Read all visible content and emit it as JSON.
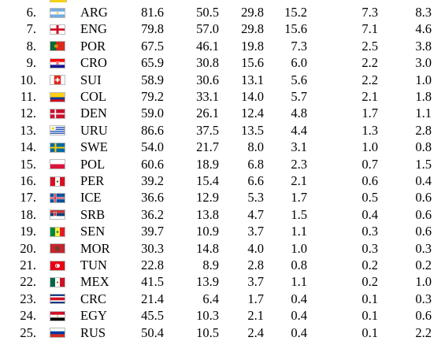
{
  "rows": [
    {
      "rank": "6.",
      "team": "ARG",
      "flag": "argentina-flag-icon",
      "values": [
        "81.6",
        "50.5",
        "29.8",
        "15.2",
        "7.3",
        "8.3"
      ]
    },
    {
      "rank": "7.",
      "team": "ENG",
      "flag": "england-flag-icon",
      "values": [
        "79.8",
        "57.0",
        "29.8",
        "15.6",
        "7.1",
        "4.6"
      ]
    },
    {
      "rank": "8.",
      "team": "POR",
      "flag": "portugal-flag-icon",
      "values": [
        "67.5",
        "46.1",
        "19.8",
        "7.3",
        "2.5",
        "3.8"
      ]
    },
    {
      "rank": "9.",
      "team": "CRO",
      "flag": "croatia-flag-icon",
      "values": [
        "65.9",
        "30.8",
        "15.6",
        "6.0",
        "2.2",
        "3.0"
      ]
    },
    {
      "rank": "10.",
      "team": "SUI",
      "flag": "switzerland-flag-icon",
      "values": [
        "58.9",
        "30.6",
        "13.1",
        "5.6",
        "2.2",
        "1.0"
      ]
    },
    {
      "rank": "11.",
      "team": "COL",
      "flag": "colombia-flag-icon",
      "values": [
        "79.2",
        "33.1",
        "14.0",
        "5.7",
        "2.1",
        "1.8"
      ]
    },
    {
      "rank": "12.",
      "team": "DEN",
      "flag": "denmark-flag-icon",
      "values": [
        "59.0",
        "26.1",
        "12.4",
        "4.8",
        "1.7",
        "1.1"
      ]
    },
    {
      "rank": "13.",
      "team": "URU",
      "flag": "uruguay-flag-icon",
      "values": [
        "86.6",
        "37.5",
        "13.5",
        "4.4",
        "1.3",
        "2.8"
      ]
    },
    {
      "rank": "14.",
      "team": "SWE",
      "flag": "sweden-flag-icon",
      "values": [
        "54.0",
        "21.7",
        "8.0",
        "3.1",
        "1.0",
        "0.8"
      ]
    },
    {
      "rank": "15.",
      "team": "POL",
      "flag": "poland-flag-icon",
      "values": [
        "60.6",
        "18.9",
        "6.8",
        "2.3",
        "0.7",
        "1.5"
      ]
    },
    {
      "rank": "16.",
      "team": "PER",
      "flag": "peru-flag-icon",
      "values": [
        "39.2",
        "15.4",
        "6.6",
        "2.1",
        "0.6",
        "0.4"
      ]
    },
    {
      "rank": "17.",
      "team": "ICE",
      "flag": "iceland-flag-icon",
      "values": [
        "36.6",
        "12.9",
        "5.3",
        "1.7",
        "0.5",
        "0.6"
      ]
    },
    {
      "rank": "18.",
      "team": "SRB",
      "flag": "serbia-flag-icon",
      "values": [
        "36.2",
        "13.8",
        "4.7",
        "1.5",
        "0.4",
        "0.6"
      ]
    },
    {
      "rank": "19.",
      "team": "SEN",
      "flag": "senegal-flag-icon",
      "values": [
        "39.7",
        "10.9",
        "3.7",
        "1.1",
        "0.3",
        "0.6"
      ]
    },
    {
      "rank": "20.",
      "team": "MOR",
      "flag": "morocco-flag-icon",
      "values": [
        "30.3",
        "14.8",
        "4.0",
        "1.0",
        "0.3",
        "0.3"
      ]
    },
    {
      "rank": "21.",
      "team": "TUN",
      "flag": "tunisia-flag-icon",
      "values": [
        "22.8",
        "8.9",
        "2.8",
        "0.8",
        "0.2",
        "0.2"
      ]
    },
    {
      "rank": "22.",
      "team": "MEX",
      "flag": "mexico-flag-icon",
      "values": [
        "41.5",
        "13.9",
        "3.7",
        "1.1",
        "0.2",
        "1.0"
      ]
    },
    {
      "rank": "23.",
      "team": "CRC",
      "flag": "costa-rica-flag-icon",
      "values": [
        "21.4",
        "6.4",
        "1.7",
        "0.4",
        "0.1",
        "0.3"
      ]
    },
    {
      "rank": "24.",
      "team": "EGY",
      "flag": "egypt-flag-icon",
      "values": [
        "45.5",
        "10.3",
        "2.1",
        "0.4",
        "0.1",
        "0.6"
      ]
    },
    {
      "rank": "25.",
      "team": "RUS",
      "flag": "russia-flag-icon",
      "values": [
        "50.4",
        "10.5",
        "2.4",
        "0.4",
        "0.1",
        "2.2"
      ]
    }
  ]
}
